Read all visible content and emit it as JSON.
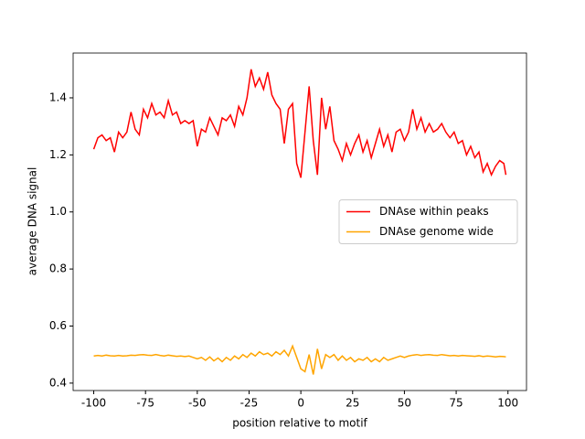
{
  "chart_data": {
    "type": "line",
    "xlabel": "position relative to motif",
    "ylabel": "average DNA signal",
    "x": [
      -100,
      -98,
      -96,
      -94,
      -92,
      -90,
      -88,
      -86,
      -84,
      -82,
      -80,
      -78,
      -76,
      -74,
      -72,
      -70,
      -68,
      -66,
      -64,
      -62,
      -60,
      -58,
      -56,
      -54,
      -52,
      -50,
      -48,
      -46,
      -44,
      -42,
      -40,
      -38,
      -36,
      -34,
      -32,
      -30,
      -28,
      -26,
      -24,
      -22,
      -20,
      -18,
      -16,
      -14,
      -12,
      -10,
      -8,
      -6,
      -4,
      -2,
      0,
      2,
      4,
      6,
      8,
      10,
      12,
      14,
      16,
      18,
      20,
      22,
      24,
      26,
      28,
      30,
      32,
      34,
      36,
      38,
      40,
      42,
      44,
      46,
      48,
      50,
      52,
      54,
      56,
      58,
      60,
      62,
      64,
      66,
      68,
      70,
      72,
      74,
      76,
      78,
      80,
      82,
      84,
      86,
      88,
      90,
      92,
      94,
      96,
      98,
      99
    ],
    "series": [
      {
        "name": "DNAse within peaks",
        "color": "#ff0000",
        "values": [
          1.22,
          1.26,
          1.27,
          1.25,
          1.26,
          1.21,
          1.28,
          1.26,
          1.28,
          1.35,
          1.29,
          1.27,
          1.36,
          1.33,
          1.38,
          1.34,
          1.35,
          1.33,
          1.39,
          1.34,
          1.35,
          1.31,
          1.32,
          1.31,
          1.32,
          1.23,
          1.29,
          1.28,
          1.33,
          1.3,
          1.27,
          1.33,
          1.32,
          1.34,
          1.3,
          1.37,
          1.34,
          1.4,
          1.5,
          1.44,
          1.47,
          1.43,
          1.49,
          1.41,
          1.38,
          1.36,
          1.24,
          1.36,
          1.38,
          1.17,
          1.12,
          1.28,
          1.44,
          1.25,
          1.13,
          1.4,
          1.29,
          1.37,
          1.25,
          1.22,
          1.18,
          1.24,
          1.2,
          1.24,
          1.27,
          1.21,
          1.25,
          1.19,
          1.24,
          1.29,
          1.23,
          1.27,
          1.21,
          1.28,
          1.29,
          1.25,
          1.28,
          1.36,
          1.29,
          1.33,
          1.28,
          1.31,
          1.28,
          1.29,
          1.31,
          1.28,
          1.26,
          1.28,
          1.24,
          1.25,
          1.2,
          1.23,
          1.19,
          1.21,
          1.14,
          1.17,
          1.13,
          1.16,
          1.18,
          1.17,
          1.13
        ]
      },
      {
        "name": "DNAse genome wide",
        "color": "#ffa500",
        "values": [
          0.495,
          0.497,
          0.495,
          0.498,
          0.496,
          0.495,
          0.497,
          0.495,
          0.496,
          0.498,
          0.497,
          0.499,
          0.5,
          0.498,
          0.497,
          0.5,
          0.497,
          0.495,
          0.498,
          0.496,
          0.494,
          0.495,
          0.493,
          0.495,
          0.49,
          0.485,
          0.49,
          0.48,
          0.492,
          0.478,
          0.488,
          0.475,
          0.49,
          0.48,
          0.495,
          0.485,
          0.5,
          0.49,
          0.505,
          0.495,
          0.51,
          0.5,
          0.505,
          0.495,
          0.51,
          0.5,
          0.515,
          0.495,
          0.53,
          0.49,
          0.45,
          0.44,
          0.5,
          0.43,
          0.52,
          0.45,
          0.5,
          0.49,
          0.5,
          0.48,
          0.495,
          0.48,
          0.49,
          0.475,
          0.485,
          0.48,
          0.49,
          0.475,
          0.485,
          0.475,
          0.49,
          0.48,
          0.485,
          0.49,
          0.495,
          0.49,
          0.495,
          0.498,
          0.5,
          0.497,
          0.499,
          0.5,
          0.498,
          0.497,
          0.5,
          0.498,
          0.496,
          0.497,
          0.495,
          0.497,
          0.496,
          0.495,
          0.494,
          0.496,
          0.493,
          0.495,
          0.494,
          0.492,
          0.494,
          0.493,
          0.492
        ]
      }
    ],
    "xlim": [
      -109.95,
      108.95
    ],
    "xticks": [
      -100,
      -75,
      -50,
      -25,
      0,
      25,
      50,
      75,
      100
    ],
    "ylim": [
      0.374,
      1.557
    ],
    "yticks": [
      0.4,
      0.6,
      0.8,
      {
        "value": 1,
        "label": "1.0"
      },
      1.2,
      1.4
    ],
    "legend": "center right"
  }
}
